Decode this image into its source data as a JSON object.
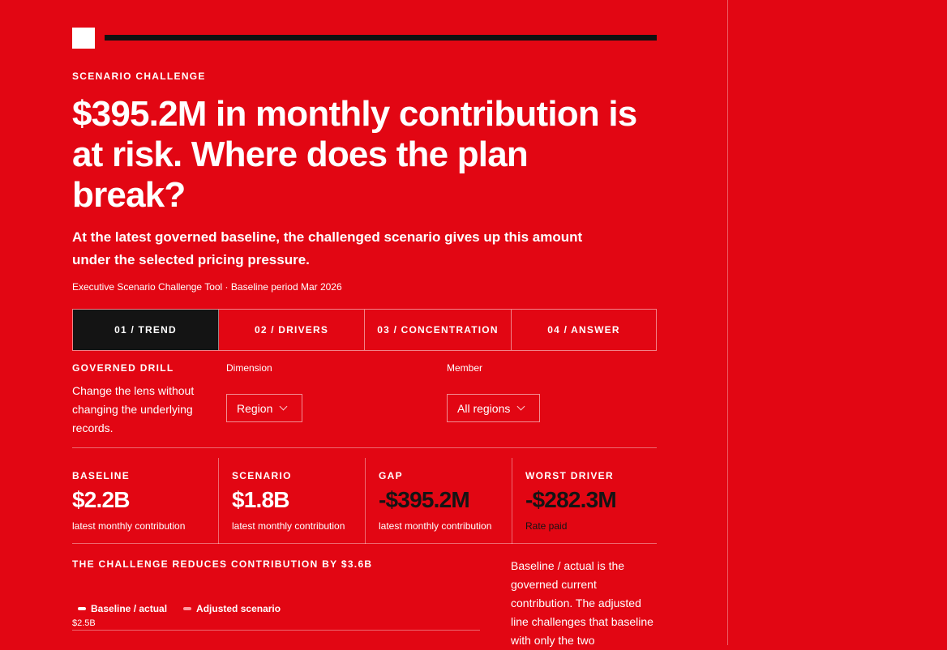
{
  "eyebrow": "SCENARIO CHALLENGE",
  "headline": "$395.2M in monthly contribution is at risk. Where does the plan break?",
  "lede": "At the latest governed baseline, the challenged scenario gives up this amount under the selected pricing pressure.",
  "meta": "Executive Scenario Challenge Tool · Baseline period Mar 2026",
  "tabs": [
    {
      "label": "01 / TREND",
      "active": true
    },
    {
      "label": "02 / DRIVERS"
    },
    {
      "label": "03 / CONCENTRATION"
    },
    {
      "label": "04 / ANSWER"
    }
  ],
  "drill": {
    "title": "GOVERNED DRILL",
    "description": "Change the lens without changing the underlying records.",
    "dimension_label": "Dimension",
    "dimension_value": "Region",
    "member_label": "Member",
    "member_value": "All regions"
  },
  "kpis": [
    {
      "label": "BASELINE",
      "value": "$2.2B",
      "sub": "latest monthly contribution"
    },
    {
      "label": "SCENARIO",
      "value": "$1.8B",
      "sub": "latest monthly contribution"
    },
    {
      "label": "GAP",
      "value": "-$395.2M",
      "sub": "latest monthly contribution"
    },
    {
      "label": "WORST DRIVER",
      "value": "-$282.3M",
      "sub": "Rate paid"
    }
  ],
  "chart": {
    "title": "THE CHALLENGE REDUCES CONTRIBUTION BY $3.6B",
    "legend": [
      "Baseline / actual",
      "Adjusted scenario"
    ],
    "ytick_top": "$2.5B"
  },
  "side_note": "Baseline / actual is the governed current contribution. The adjusted line challenges that baseline with only the two",
  "colors": {
    "background": "#e20613",
    "ink": "#141414",
    "text": "#ffffff"
  }
}
